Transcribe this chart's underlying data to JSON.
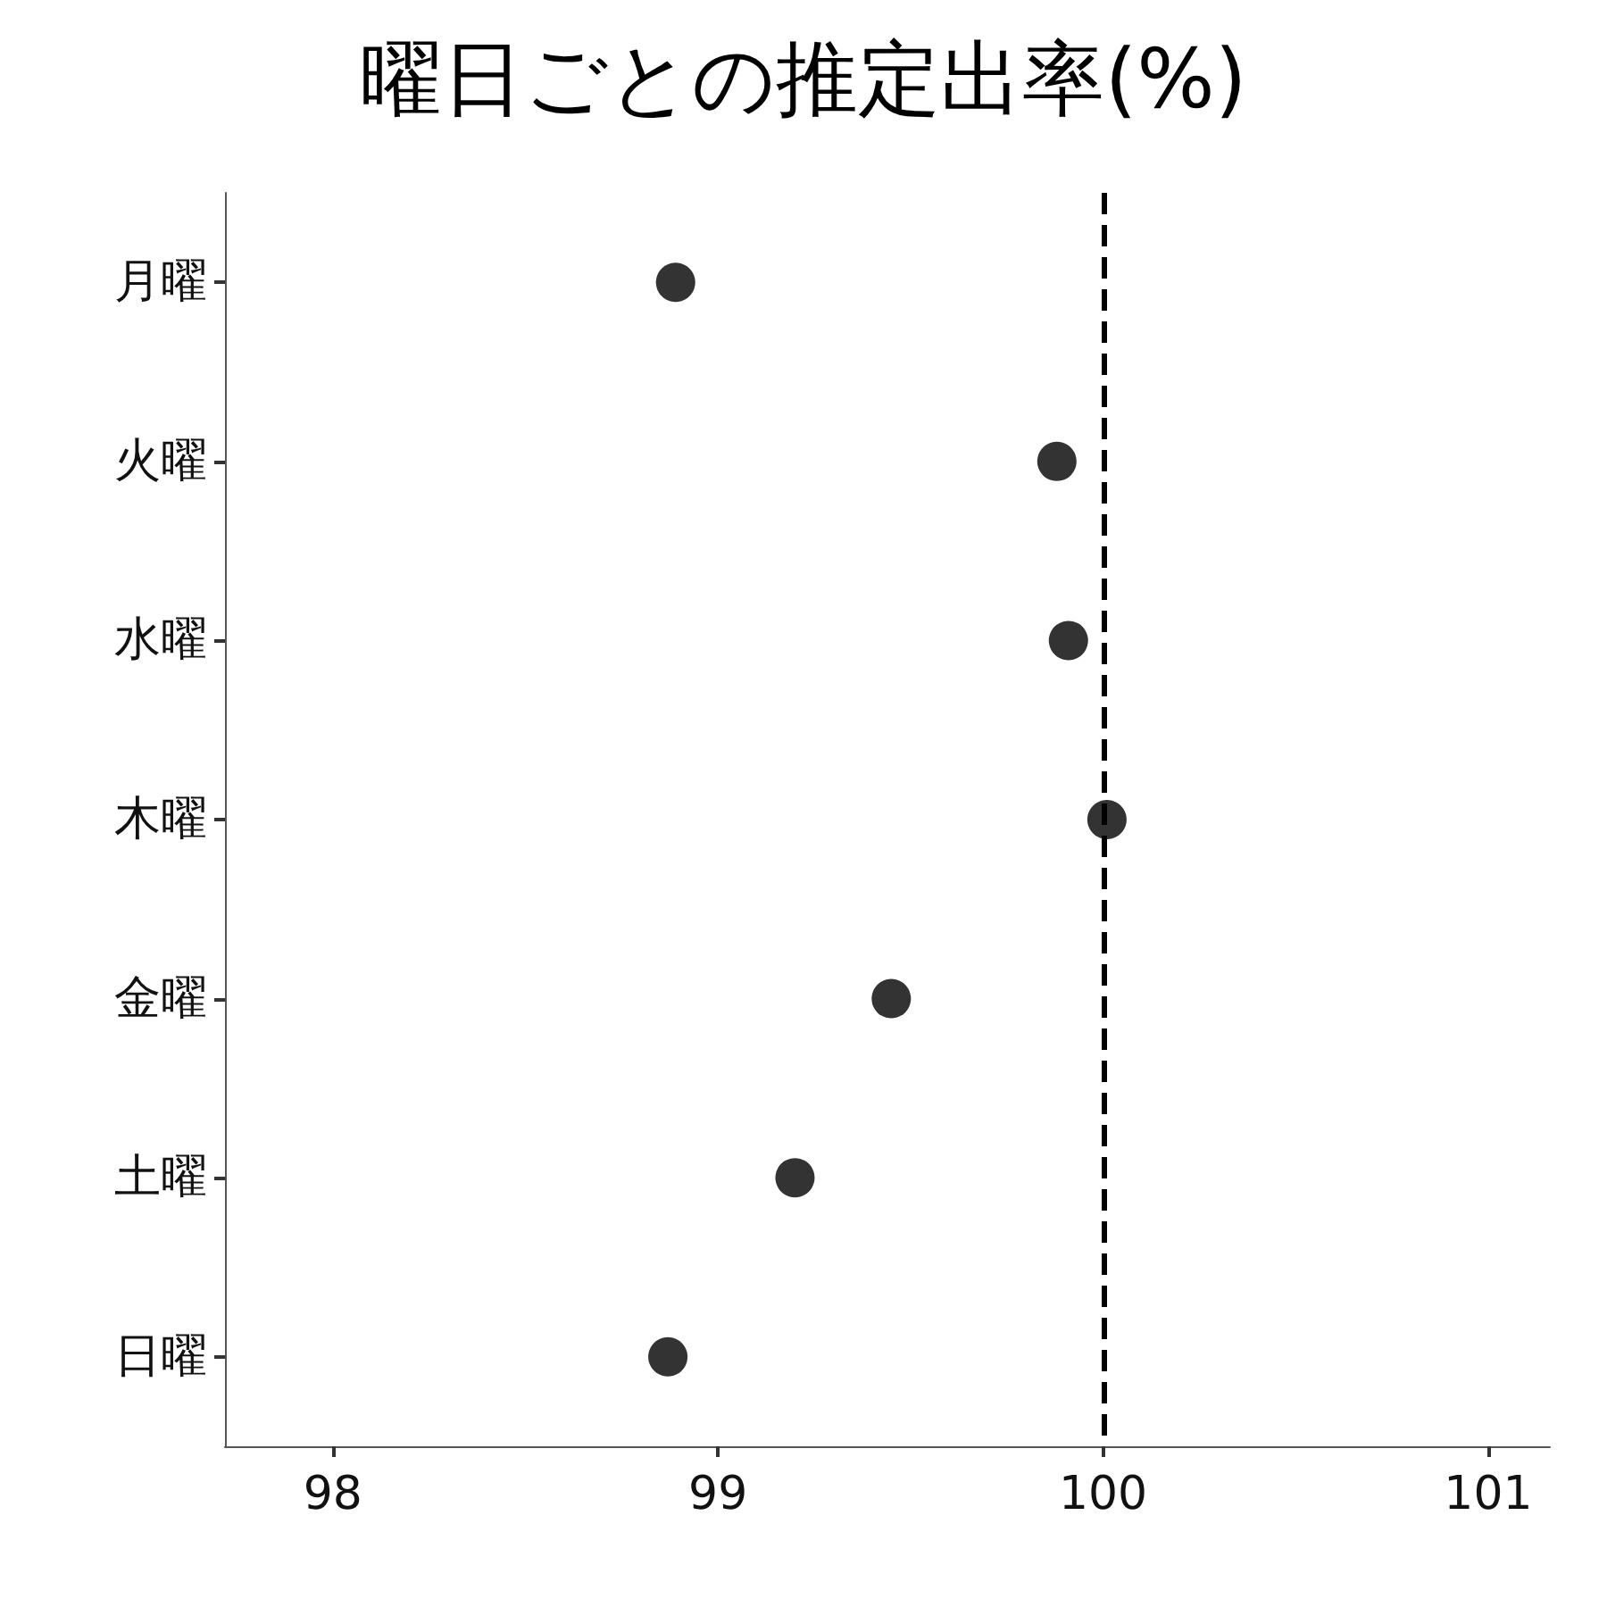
{
  "chart_data": {
    "type": "scatter",
    "title": "曜日ごとの推定出率(%)",
    "orientation": "horizontal",
    "categories": [
      "月曜",
      "火曜",
      "水曜",
      "木曜",
      "金曜",
      "土曜",
      "日曜"
    ],
    "series": [
      {
        "color": "#000000",
        "values": [
          98.89,
          99.88,
          99.91,
          100.01,
          99.45,
          99.2,
          98.87
        ]
      }
    ],
    "xlim": [
      97.72,
      101.16
    ],
    "xticks": [
      98,
      99,
      100,
      101
    ],
    "marker": "circle",
    "ref_lines": [
      {
        "axis": "x",
        "value": 100,
        "color": "#000000",
        "line_style": "dashed"
      }
    ]
  }
}
